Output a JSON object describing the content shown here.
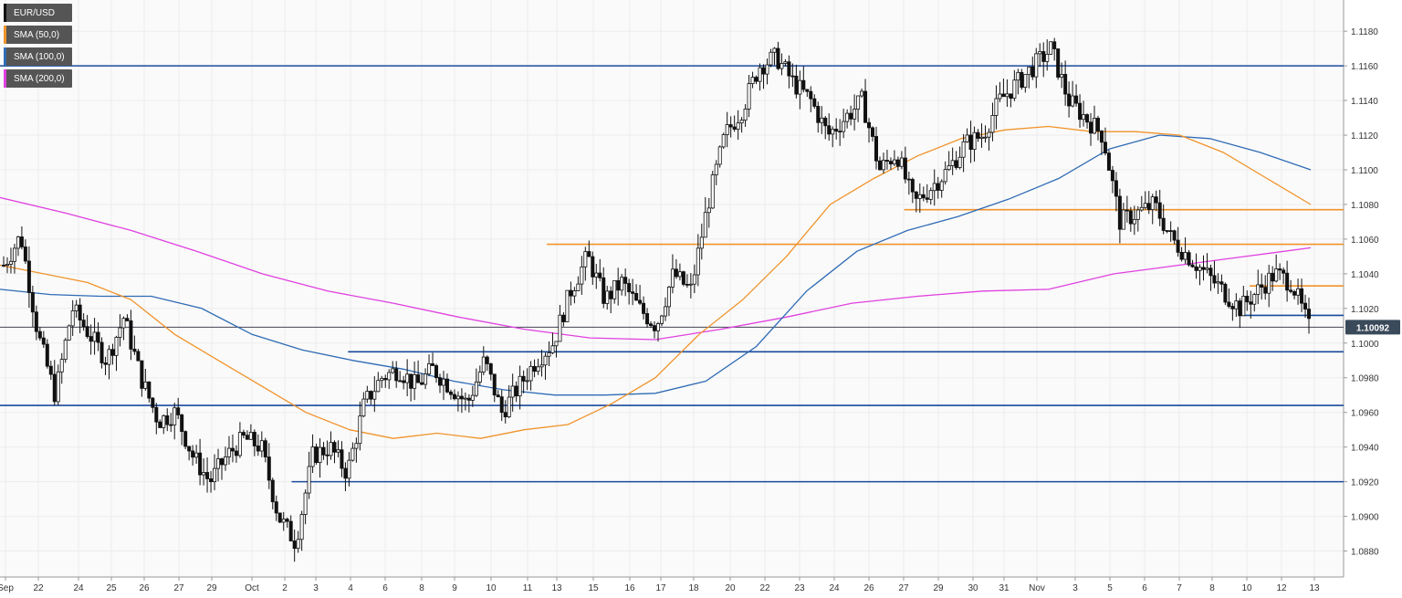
{
  "legend": [
    {
      "label": "EUR/USD",
      "color": "#111111"
    },
    {
      "label": "SMA (50,0)",
      "color": "#f0932b"
    },
    {
      "label": "SMA (100,0)",
      "color": "#2f6bb5"
    },
    {
      "label": "SMA (200,0)",
      "color": "#e040e0"
    }
  ],
  "price_badge": "1.10092",
  "chart_data": {
    "type": "candlestick",
    "symbol": "EUR/USD",
    "x_tick_labels": [
      "Sep",
      "22",
      "24",
      "25",
      "26",
      "27",
      "29",
      "Oct",
      "2",
      "3",
      "4",
      "6",
      "8",
      "9",
      "10",
      "11",
      "13",
      "15",
      "16",
      "17",
      "18",
      "20",
      "22",
      "23",
      "24",
      "26",
      "27",
      "29",
      "30",
      "31",
      "Nov",
      "3",
      "5",
      "6",
      "7",
      "8",
      "10",
      "12",
      "13"
    ],
    "y_tick_labels": [
      "1.1180",
      "1.1160",
      "1.1140",
      "1.1120",
      "1.1100",
      "1.1080",
      "1.1060",
      "1.1040",
      "1.1020",
      "1.1000",
      "1.0980",
      "1.0960",
      "1.0940",
      "1.0920",
      "1.0900",
      "1.0880"
    ],
    "ylim": [
      1.0865,
      1.1198
    ],
    "current_price": 1.10092,
    "horizontal_levels": [
      {
        "value": 1.116,
        "color": "#1a4a9c",
        "from_pct": 0,
        "to_pct": 1
      },
      {
        "value": 1.0995,
        "color": "#1a4a9c",
        "from_pct": 0.259,
        "to_pct": 1
      },
      {
        "value": 1.0964,
        "color": "#1a4a9c",
        "from_pct": 0,
        "to_pct": 1
      },
      {
        "value": 1.092,
        "color": "#1a4a9c",
        "from_pct": 0.217,
        "to_pct": 1
      },
      {
        "value": 1.1057,
        "color": "#f0932b",
        "from_pct": 0.407,
        "to_pct": 1
      },
      {
        "value": 1.1077,
        "color": "#f0932b",
        "from_pct": 0.673,
        "to_pct": 1
      },
      {
        "value": 1.1033,
        "color": "#f0932b",
        "from_pct": 0.93,
        "to_pct": 1
      },
      {
        "value": 1.1016,
        "color": "#1a4a9c",
        "from_pct": 0.922,
        "to_pct": 1
      }
    ],
    "anchors": [
      1.1045,
      1.1062,
      1.1005,
      1.097,
      1.102,
      1.1005,
      1.099,
      1.1015,
      1.098,
      1.0955,
      1.096,
      1.0935,
      1.092,
      1.0935,
      1.0945,
      1.094,
      1.09,
      1.0885,
      1.0935,
      1.094,
      1.0925,
      1.0965,
      1.098,
      1.0985,
      1.0975,
      1.0985,
      1.0975,
      1.0965,
      1.099,
      1.096,
      1.0975,
      1.099,
      1.1,
      1.103,
      1.105,
      1.1025,
      1.1035,
      1.102,
      1.101,
      1.104,
      1.103,
      1.108,
      1.112,
      1.1135,
      1.116,
      1.1165,
      1.115,
      1.114,
      1.112,
      1.113,
      1.114,
      1.11,
      1.111,
      1.108,
      1.109,
      1.11,
      1.1115,
      1.112,
      1.114,
      1.115,
      1.116,
      1.117,
      1.114,
      1.113,
      1.112,
      1.107,
      1.1075,
      1.108,
      1.106,
      1.105,
      1.104,
      1.103,
      1.102,
      1.103,
      1.104,
      1.1035,
      1.1009
    ],
    "sma50": [
      1.1045,
      1.104,
      1.1035,
      1.1025,
      1.1005,
      1.099,
      1.0975,
      1.096,
      1.095,
      1.0945,
      1.0948,
      1.0945,
      1.095,
      1.0953,
      1.0965,
      1.098,
      1.1005,
      1.1025,
      1.105,
      1.108,
      1.1095,
      1.1108,
      1.1118,
      1.1123,
      1.1125,
      1.1122,
      1.1122,
      1.112,
      1.111,
      1.1095,
      1.108
    ],
    "sma100": [
      1.1031,
      1.1028,
      1.1027,
      1.1027,
      1.102,
      1.1005,
      1.0996,
      1.099,
      1.0985,
      1.0978,
      1.0973,
      1.097,
      1.097,
      1.0971,
      1.0978,
      1.0998,
      1.103,
      1.1053,
      1.1065,
      1.1073,
      1.1083,
      1.1095,
      1.1112,
      1.112,
      1.1118,
      1.111,
      1.11
    ],
    "sma200": [
      1.1084,
      1.1075,
      1.1065,
      1.1053,
      1.104,
      1.103,
      1.1023,
      1.1015,
      1.1008,
      1.1003,
      1.1002,
      1.1008,
      1.1015,
      1.1023,
      1.1027,
      1.103,
      1.1031,
      1.104,
      1.1045,
      1.105,
      1.1055
    ]
  }
}
